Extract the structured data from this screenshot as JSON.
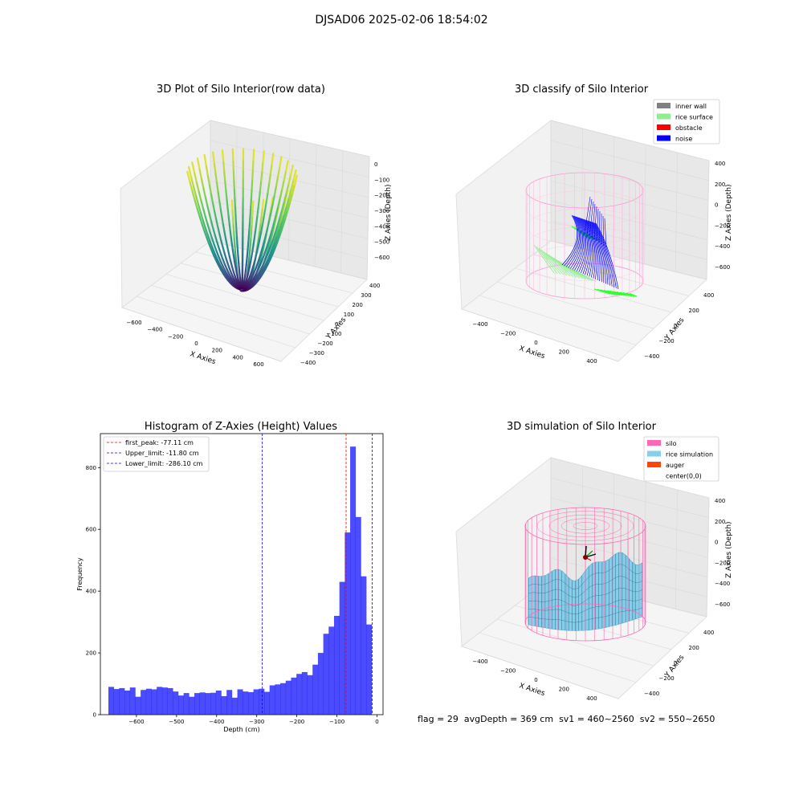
{
  "figure_title": "DJSAD06 2025-02-06 18:54:02",
  "footer": {
    "flag": "flag = 29",
    "avg_depth": "avgDepth = 369 cm",
    "sv1": "sv1 = 460~2560",
    "sv2": "sv2 = 550~2650"
  },
  "chart_data": [
    {
      "type": "scatter",
      "projection": "3d",
      "title": "3D Plot of Silo Interior(row data)",
      "xlabel": "X Axies",
      "ylabel": "Y Axies",
      "zlabel": "Z Axies (Depth)",
      "x_ticks": [
        "−600",
        "−400",
        "−200",
        "0",
        "200",
        "400",
        "600"
      ],
      "y_ticks": [
        "−400",
        "−300",
        "−200",
        "−100",
        "0",
        "100",
        "200",
        "300",
        "400"
      ],
      "z_ticks": [
        "0",
        "−100",
        "−200",
        "−300",
        "−400",
        "−500",
        "−600"
      ],
      "xlim": [
        -650,
        650
      ],
      "ylim": [
        -400,
        400
      ],
      "zlim": [
        -690,
        10
      ],
      "colormap": "viridis"
    },
    {
      "type": "scatter",
      "projection": "3d",
      "title": "3D classify of Silo Interior",
      "xlabel": "X Axies",
      "ylabel": "Y Axies",
      "zlabel": "Z Axies (Depth)",
      "x_ticks": [
        "−400",
        "−200",
        "0",
        "200",
        "400"
      ],
      "y_ticks": [
        "−400",
        "−200",
        "0",
        "200",
        "400"
      ],
      "z_ticks": [
        "400",
        "200",
        "0",
        "−200",
        "−400",
        "−600"
      ],
      "legend_position": "top-right",
      "legend": [
        {
          "label": "inner wall",
          "color": "#808080"
        },
        {
          "label": "rice surface",
          "color": "#90ee90"
        },
        {
          "label": "obstacle",
          "color": "#ff0000"
        },
        {
          "label": "noise",
          "color": "#0000ff"
        }
      ]
    },
    {
      "type": "bar",
      "title": "Histogram of Z-Axies (Height) Values",
      "xlabel": "Depth (cm)",
      "ylabel": "Frequency",
      "xlim": [
        -690,
        15
      ],
      "ylim": [
        0,
        910
      ],
      "x_ticks": [
        -600,
        -500,
        -400,
        -300,
        -200,
        -100,
        0
      ],
      "y_ticks": [
        0,
        200,
        400,
        600,
        800
      ],
      "bin_start": -670,
      "bin_width": 13.4,
      "values": [
        90,
        83,
        86,
        78,
        88,
        58,
        80,
        84,
        82,
        90,
        88,
        86,
        75,
        62,
        70,
        58,
        70,
        72,
        70,
        71,
        78,
        60,
        80,
        55,
        82,
        75,
        73,
        82,
        84,
        74,
        95,
        98,
        102,
        110,
        120,
        132,
        138,
        128,
        162,
        200,
        262,
        285,
        320,
        430,
        590,
        868,
        640,
        448,
        292
      ],
      "bar_color": "#0000ff",
      "bar_alpha": 0.7,
      "legend_position": "top-left",
      "vlines": [
        {
          "label": "first_peak: -77.11 cm",
          "x": -77.11,
          "color": "#ff0000"
        },
        {
          "label": "Upper_limit: -11.80 cm",
          "x": -11.8,
          "color": "#0000ff"
        },
        {
          "label": "Lower_limit: -286.10 cm",
          "x": -286.1,
          "color": "#0000ff"
        }
      ]
    },
    {
      "type": "area",
      "projection": "3d",
      "title": "3D simulation of Silo Interior",
      "xlabel": "X Axies",
      "ylabel": "Y Axies",
      "zlabel": "Z Axies (Depth)",
      "x_ticks": [
        "−400",
        "−200",
        "0",
        "200",
        "400"
      ],
      "y_ticks": [
        "−400",
        "−200",
        "0",
        "200",
        "400"
      ],
      "z_ticks": [
        "400",
        "200",
        "0",
        "−200",
        "−400",
        "−600"
      ],
      "legend_position": "top-right",
      "legend": [
        {
          "label": "silo",
          "color": "#ff69b4"
        },
        {
          "label": "rice simulation",
          "color": "#87ceeb"
        },
        {
          "label": "auger",
          "color": "#ff4500"
        },
        {
          "label": "center(0,0)",
          "color": "#ffffff"
        }
      ]
    }
  ]
}
